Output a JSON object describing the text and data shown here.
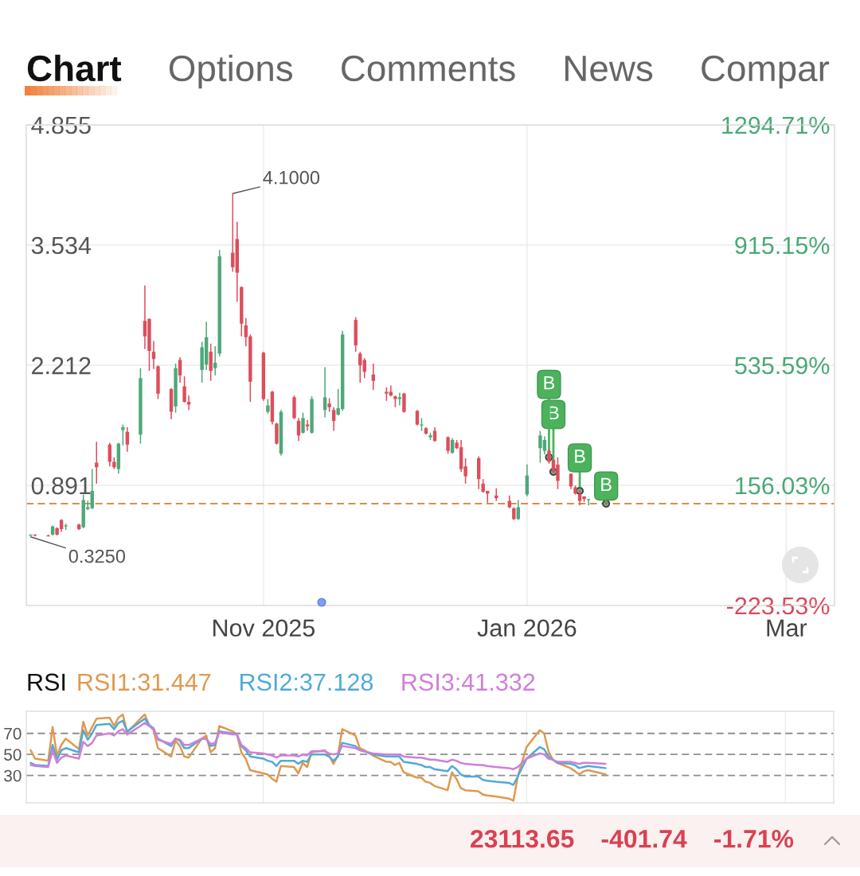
{
  "chart_data": [
    {
      "type": "other",
      "annotations": [
        "Chart",
        "Options",
        "Comments",
        "News",
        "Compar"
      ]
    },
    {
      "type": "candlestick",
      "x": [
        "2025-09-11",
        "2025-09-12",
        "2025-09-15",
        "2025-09-16",
        "2025-09-17",
        "2025-09-18",
        "2025-09-19",
        "2025-09-22",
        "2025-09-23",
        "2025-09-24",
        "2025-09-25",
        "2025-09-26",
        "2025-09-29",
        "2025-09-30",
        "2025-10-01",
        "2025-10-02",
        "2025-10-03",
        "2025-10-06",
        "2025-10-07",
        "2025-10-08",
        "2025-10-09",
        "2025-10-10",
        "2025-10-13",
        "2025-10-14",
        "2025-10-15",
        "2025-10-16",
        "2025-10-17",
        "2025-10-20",
        "2025-10-21",
        "2025-10-22",
        "2025-10-23",
        "2025-10-24",
        "2025-10-27",
        "2025-10-28",
        "2025-10-29",
        "2025-10-30",
        "2025-10-31",
        "2025-11-03",
        "2025-11-04",
        "2025-11-05",
        "2025-11-06",
        "2025-11-07",
        "2025-11-10",
        "2025-11-11",
        "2025-11-12",
        "2025-11-13",
        "2025-11-14",
        "2025-11-17",
        "2025-11-18",
        "2025-11-19",
        "2025-11-20",
        "2025-11-21",
        "2025-11-24",
        "2025-11-25",
        "2025-11-26",
        "2025-11-28",
        "2025-12-01",
        "2025-12-02",
        "2025-12-03",
        "2025-12-04",
        "2025-12-05",
        "2025-12-08",
        "2025-12-09",
        "2025-12-10",
        "2025-12-11",
        "2025-12-12",
        "2025-12-15",
        "2025-12-16",
        "2025-12-17",
        "2025-12-18",
        "2025-12-19",
        "2025-12-22",
        "2025-12-23",
        "2025-12-24",
        "2025-12-26",
        "2025-12-29",
        "2025-12-30",
        "2025-12-31",
        "2026-01-02",
        "2026-01-05",
        "2026-01-06",
        "2026-01-07",
        "2026-01-08",
        "2026-01-09",
        "2026-01-12",
        "2026-01-13",
        "2026-01-14",
        "2026-01-15",
        "2026-01-16",
        "2026-01-20"
      ],
      "ohlc": [
        [
          0.34,
          0.35,
          0.325,
          0.35
        ],
        [
          0.35,
          0.35,
          0.33,
          0.34
        ],
        [
          0.34,
          0.35,
          0.33,
          0.33
        ],
        [
          0.35,
          0.45,
          0.34,
          0.44
        ],
        [
          0.42,
          0.43,
          0.34,
          0.35
        ],
        [
          0.51,
          0.52,
          0.38,
          0.41
        ],
        [
          0.44,
          0.47,
          0.4,
          0.45
        ],
        [
          0.46,
          0.47,
          0.4,
          0.41
        ],
        [
          0.43,
          0.79,
          0.42,
          0.73
        ],
        [
          0.63,
          0.72,
          0.62,
          0.65
        ],
        [
          0.64,
          1.07,
          0.63,
          0.83
        ],
        [
          1.14,
          1.37,
          0.91,
          1.09
        ],
        [
          1.34,
          1.36,
          1.1,
          1.15
        ],
        [
          1.15,
          1.2,
          1.07,
          1.09
        ],
        [
          1.07,
          1.36,
          1.02,
          1.35
        ],
        [
          1.5,
          1.56,
          1.33,
          1.53
        ],
        [
          1.48,
          1.53,
          1.26,
          1.34
        ],
        [
          1.45,
          2.18,
          1.35,
          2.07
        ],
        [
          2.7,
          3.09,
          2.39,
          2.53
        ],
        [
          2.72,
          2.73,
          2.15,
          2.37
        ],
        [
          2.36,
          2.48,
          2.17,
          2.28
        ],
        [
          2.2,
          2.21,
          1.84,
          1.9
        ],
        [
          1.95,
          1.96,
          1.62,
          1.7
        ],
        [
          1.76,
          2.23,
          1.69,
          2.18
        ],
        [
          2.27,
          2.3,
          2.02,
          2.1
        ],
        [
          1.98,
          2.09,
          1.8,
          1.81
        ],
        [
          1.81,
          1.88,
          1.72,
          1.78
        ],
        [
          2.16,
          2.47,
          2.02,
          2.41
        ],
        [
          2.22,
          2.69,
          2.16,
          2.52
        ],
        [
          2.36,
          2.45,
          2.04,
          2.15
        ],
        [
          2.18,
          2.42,
          2.1,
          2.24
        ],
        [
          2.34,
          3.48,
          2.31,
          3.41
        ],
        [
          3.45,
          4.1,
          3.24,
          3.29
        ],
        [
          3.6,
          3.79,
          2.91,
          3.23
        ],
        [
          3.07,
          3.08,
          2.53,
          2.67
        ],
        [
          2.65,
          2.73,
          2.42,
          2.52
        ],
        [
          2.53,
          2.55,
          1.81,
          2.03
        ],
        [
          2.35,
          2.36,
          1.82,
          1.84
        ],
        [
          1.7,
          1.84,
          1.68,
          1.77
        ],
        [
          1.92,
          1.93,
          1.56,
          1.59
        ],
        [
          1.57,
          1.58,
          1.34,
          1.35
        ],
        [
          1.24,
          1.72,
          1.22,
          1.7
        ],
        [
          1.86,
          1.88,
          1.62,
          1.63
        ],
        [
          1.6,
          1.63,
          1.38,
          1.44
        ],
        [
          1.47,
          1.69,
          1.46,
          1.63
        ],
        [
          1.56,
          1.61,
          1.49,
          1.54
        ],
        [
          1.47,
          1.87,
          1.46,
          1.84
        ],
        [
          1.72,
          2.19,
          1.64,
          1.86
        ],
        [
          1.79,
          1.85,
          1.7,
          1.75
        ],
        [
          1.72,
          1.75,
          1.49,
          1.6
        ],
        [
          1.67,
          1.95,
          1.66,
          1.74
        ],
        [
          1.73,
          2.59,
          1.71,
          2.55
        ],
        [
          2.71,
          2.74,
          2.36,
          2.43
        ],
        [
          2.34,
          2.36,
          2.02,
          2.21
        ],
        [
          2.27,
          2.29,
          2.07,
          2.14
        ],
        [
          2.11,
          2.23,
          1.94,
          2.04
        ],
        [
          1.92,
          1.97,
          1.82,
          1.9
        ],
        [
          1.92,
          1.99,
          1.87,
          1.88
        ],
        [
          1.87,
          1.88,
          1.75,
          1.84
        ],
        [
          1.84,
          1.91,
          1.77,
          1.86
        ],
        [
          1.9,
          1.91,
          1.69,
          1.7
        ],
        [
          1.71,
          1.72,
          1.55,
          1.56
        ],
        [
          1.55,
          1.63,
          1.49,
          1.56
        ],
        [
          1.52,
          1.53,
          1.45,
          1.46
        ],
        [
          1.42,
          1.47,
          1.39,
          1.44
        ],
        [
          1.49,
          1.53,
          1.37,
          1.38
        ],
        [
          1.42,
          1.43,
          1.24,
          1.27
        ],
        [
          1.25,
          1.41,
          1.24,
          1.39
        ],
        [
          1.36,
          1.39,
          1.29,
          1.3
        ],
        [
          1.31,
          1.39,
          1.04,
          1.07
        ],
        [
          1.1,
          1.19,
          0.91,
          0.99
        ],
        [
          1.19,
          1.21,
          0.85,
          0.96
        ],
        [
          0.91,
          0.96,
          0.81,
          0.82
        ],
        [
          0.83,
          0.83,
          0.7,
          0.8
        ],
        [
          0.78,
          0.86,
          0.72,
          0.75
        ],
        [
          0.72,
          0.78,
          0.64,
          0.65
        ],
        [
          0.64,
          0.65,
          0.51,
          0.52
        ],
        [
          0.52,
          0.73,
          0.51,
          0.65
        ],
        [
          0.79,
          1.12,
          0.77,
          1.0
        ],
        [
          1.3,
          1.49,
          1.14,
          1.44
        ],
        [
          1.27,
          1.43,
          1.23,
          1.39
        ],
        [
          1.27,
          1.29,
          1.13,
          1.15
        ],
        [
          1.17,
          1.18,
          1.03,
          1.04
        ],
        [
          1.12,
          1.2,
          0.85,
          0.94
        ],
        [
          1.02,
          1.02,
          0.85,
          0.88
        ],
        [
          0.87,
          0.89,
          0.79,
          0.8
        ],
        [
          0.79,
          0.84,
          0.67,
          0.72
        ],
        [
          0.77,
          0.77,
          0.71,
          0.74
        ],
        [
          0.73,
          0.74,
          0.67,
          0.74
        ],
        [
          0.7,
          0.71,
          0.68,
          0.69
        ]
      ],
      "colors": [
        "#4ea87a",
        "#dc4e5c",
        "#dc4e5c",
        "#4ea87a",
        "#dc4e5c",
        "#dc4e5c",
        "#4ea87a",
        "#dc4e5c",
        "#4ea87a",
        "#4ea87a",
        "#4ea87a",
        "#dc4e5c",
        "#dc4e5c",
        "#dc4e5c",
        "#4ea87a",
        "#4ea87a",
        "#dc4e5c",
        "#4ea87a",
        "#dc4e5c",
        "#dc4e5c",
        "#dc4e5c",
        "#dc4e5c",
        "#dc4e5c",
        "#4ea87a",
        "#dc4e5c",
        "#dc4e5c",
        "#dc4e5c",
        "#4ea87a",
        "#4ea87a",
        "#dc4e5c",
        "#4ea87a",
        "#4ea87a",
        "#dc4e5c",
        "#dc4e5c",
        "#dc4e5c",
        "#dc4e5c",
        "#dc4e5c",
        "#dc4e5c",
        "#4ea87a",
        "#dc4e5c",
        "#dc4e5c",
        "#4ea87a",
        "#dc4e5c",
        "#dc4e5c",
        "#4ea87a",
        "#dc4e5c",
        "#4ea87a",
        "#4ea87a",
        "#dc4e5c",
        "#dc4e5c",
        "#4ea87a",
        "#4ea87a",
        "#dc4e5c",
        "#dc4e5c",
        "#dc4e5c",
        "#dc4e5c",
        "#dc4e5c",
        "#dc4e5c",
        "#dc4e5c",
        "#4ea87a",
        "#dc4e5c",
        "#dc4e5c",
        "#4ea87a",
        "#dc4e5c",
        "#4ea87a",
        "#dc4e5c",
        "#dc4e5c",
        "#4ea87a",
        "#dc4e5c",
        "#dc4e5c",
        "#dc4e5c",
        "#dc4e5c",
        "#dc4e5c",
        "#dc4e5c",
        "#dc4e5c",
        "#dc4e5c",
        "#dc4e5c",
        "#4ea87a",
        "#4ea87a",
        "#4ea87a",
        "#4ea87a",
        "#dc4e5c",
        "#dc4e5c",
        "#dc4e5c",
        "#dc4e5c",
        "#dc4e5c",
        "#dc4e5c",
        "#dc4e5c",
        "#4ea87a",
        "#dc4e5c"
      ],
      "xlim": [
        "2025-09-10",
        "2026-03-13"
      ],
      "xticks": [
        {
          "value": "2025-11-03",
          "label": "Nov 2025"
        },
        {
          "value": "2026-01-02",
          "label": "Jan 2026"
        },
        {
          "value": "2026-03-02",
          "label": "Mar"
        }
      ],
      "ylim": [
        -0.43,
        4.855
      ],
      "yticks": [
        4.855,
        3.534,
        2.212,
        0.891
      ],
      "y2lim": [
        -223.53,
        1294.71
      ],
      "y2ticks": [
        {
          "value": 1294.71,
          "label": "1294.71%"
        },
        {
          "value": 915.15,
          "label": "915.15%"
        },
        {
          "value": 535.59,
          "label": "535.59%"
        },
        {
          "value": 156.03,
          "label": "156.03%"
        },
        {
          "value": -223.53,
          "label": "-223.53%"
        }
      ],
      "grid": true,
      "ref_lines": [
        {
          "axis": "y",
          "value": 0.69,
          "color": "#d4914f",
          "line_style": "dashed"
        }
      ],
      "annotations": [
        {
          "text": "4.1000",
          "x": "2025-10-27",
          "y": 4.1
        },
        {
          "text": "0.3250",
          "x": "2025-09-11",
          "y": 0.325
        },
        {
          "text": "B",
          "x": "2026-01-07",
          "y": 1.2
        },
        {
          "text": "B",
          "x": "2026-01-08",
          "y": 1.04
        },
        {
          "text": "B",
          "x": "2026-01-14",
          "y": 0.83
        },
        {
          "text": "B",
          "x": "2026-01-20",
          "y": 0.69
        }
      ]
    },
    {
      "type": "line",
      "title": "RSI",
      "x": [
        "2025-09-11",
        "2025-09-12",
        "2025-09-15",
        "2025-09-16",
        "2025-09-17",
        "2025-09-18",
        "2025-09-19",
        "2025-09-22",
        "2025-09-23",
        "2025-09-24",
        "2025-09-25",
        "2025-09-26",
        "2025-09-29",
        "2025-09-30",
        "2025-10-01",
        "2025-10-02",
        "2025-10-03",
        "2025-10-06",
        "2025-10-07",
        "2025-10-08",
        "2025-10-09",
        "2025-10-10",
        "2025-10-13",
        "2025-10-14",
        "2025-10-15",
        "2025-10-16",
        "2025-10-17",
        "2025-10-20",
        "2025-10-21",
        "2025-10-22",
        "2025-10-23",
        "2025-10-24",
        "2025-10-27",
        "2025-10-28",
        "2025-10-29",
        "2025-10-30",
        "2025-10-31",
        "2025-11-03",
        "2025-11-04",
        "2025-11-05",
        "2025-11-06",
        "2025-11-07",
        "2025-11-10",
        "2025-11-11",
        "2025-11-12",
        "2025-11-13",
        "2025-11-14",
        "2025-11-17",
        "2025-11-18",
        "2025-11-19",
        "2025-11-20",
        "2025-11-21",
        "2025-11-24",
        "2025-11-25",
        "2025-11-26",
        "2025-11-28",
        "2025-12-01",
        "2025-12-02",
        "2025-12-03",
        "2025-12-04",
        "2025-12-05",
        "2025-12-08",
        "2025-12-09",
        "2025-12-10",
        "2025-12-11",
        "2025-12-12",
        "2025-12-15",
        "2025-12-16",
        "2025-12-17",
        "2025-12-18",
        "2025-12-19",
        "2025-12-22",
        "2025-12-23",
        "2025-12-24",
        "2025-12-26",
        "2025-12-29",
        "2025-12-30",
        "2025-12-31",
        "2026-01-02",
        "2026-01-05",
        "2026-01-06",
        "2026-01-07",
        "2026-01-08",
        "2026-01-09",
        "2026-01-12",
        "2026-01-13",
        "2026-01-14",
        "2026-01-15",
        "2026-01-16",
        "2026-01-20"
      ],
      "series": [
        {
          "name": "RSI1:31.447",
          "color": "#e0984f",
          "values": [
            54,
            46,
            44,
            76,
            49,
            59,
            65,
            55,
            81,
            68,
            76,
            84,
            85,
            77,
            85,
            88,
            71,
            84,
            88,
            78,
            73,
            56,
            48,
            63,
            58,
            48,
            47,
            65,
            68,
            52,
            56,
            77,
            72,
            69,
            52,
            46,
            35,
            32,
            31,
            27,
            24,
            39,
            38,
            32,
            42,
            38,
            52,
            54,
            49,
            41,
            49,
            74,
            68,
            56,
            54,
            49,
            43,
            43,
            40,
            42,
            33,
            28,
            28,
            24,
            23,
            20,
            16,
            33,
            27,
            18,
            16,
            15,
            12,
            11,
            10,
            8,
            6,
            29,
            57,
            73,
            70,
            53,
            45,
            42,
            37,
            34,
            31,
            34,
            35,
            31
          ]
        },
        {
          "name": "RSI2:37.128",
          "color": "#4faad8",
          "values": [
            42,
            40,
            39,
            59,
            45,
            54,
            56,
            52,
            73,
            64,
            70,
            78,
            79,
            74,
            80,
            82,
            72,
            81,
            84,
            78,
            75,
            65,
            58,
            65,
            63,
            56,
            56,
            65,
            65,
            58,
            59,
            72,
            70,
            69,
            58,
            54,
            48,
            46,
            44,
            43,
            39,
            44,
            44,
            41,
            44,
            43,
            50,
            50,
            48,
            44,
            48,
            61,
            58,
            54,
            53,
            50,
            48,
            48,
            48,
            48,
            43,
            41,
            40,
            38,
            38,
            36,
            34,
            39,
            36,
            31,
            29,
            29,
            26,
            25,
            24,
            23,
            21,
            29,
            46,
            57,
            55,
            48,
            45,
            42,
            41,
            40,
            37,
            38,
            39,
            37
          ]
        },
        {
          "name": "RSI3:41.332",
          "color": "#cf7fd8",
          "values": [
            40,
            39,
            38,
            54,
            42,
            47,
            49,
            46,
            62,
            58,
            61,
            68,
            70,
            68,
            72,
            74,
            69,
            77,
            80,
            77,
            74,
            64,
            60,
            65,
            64,
            59,
            59,
            65,
            65,
            60,
            61,
            71,
            69,
            69,
            59,
            56,
            52,
            51,
            50,
            49,
            47,
            49,
            49,
            48,
            50,
            49,
            53,
            53,
            51,
            50,
            51,
            58,
            56,
            54,
            53,
            51,
            50,
            50,
            50,
            50,
            48,
            47,
            47,
            46,
            45,
            45,
            43,
            45,
            44,
            42,
            41,
            40,
            40,
            39,
            38,
            37,
            36,
            38,
            46,
            51,
            50,
            46,
            45,
            43,
            43,
            42,
            41,
            42,
            42,
            41
          ]
        }
      ],
      "xlim": [
        "2025-09-10",
        "2026-03-13"
      ],
      "xticks": [
        {
          "value": "2025-11-03",
          "label": null
        },
        {
          "value": "2026-01-02",
          "label": null
        },
        {
          "value": "2026-03-02",
          "label": null
        }
      ],
      "ylim": [
        4,
        91
      ],
      "yticks": [
        30,
        50,
        70
      ],
      "tick_labels": "y",
      "grid": "x",
      "ref_lines": [
        {
          "axis": "y",
          "value": 70,
          "color": "#8f8f8f",
          "line_style": "dashed"
        },
        {
          "axis": "y",
          "value": 50,
          "color": "#8f8f8f",
          "line_style": "dashed"
        },
        {
          "axis": "y",
          "value": 30,
          "color": "#8f8f8f",
          "line_style": "dashed"
        }
      ]
    },
    {
      "type": "other",
      "annotations": [
        "23113.65",
        "-401.74",
        "-1.71%"
      ]
    }
  ]
}
